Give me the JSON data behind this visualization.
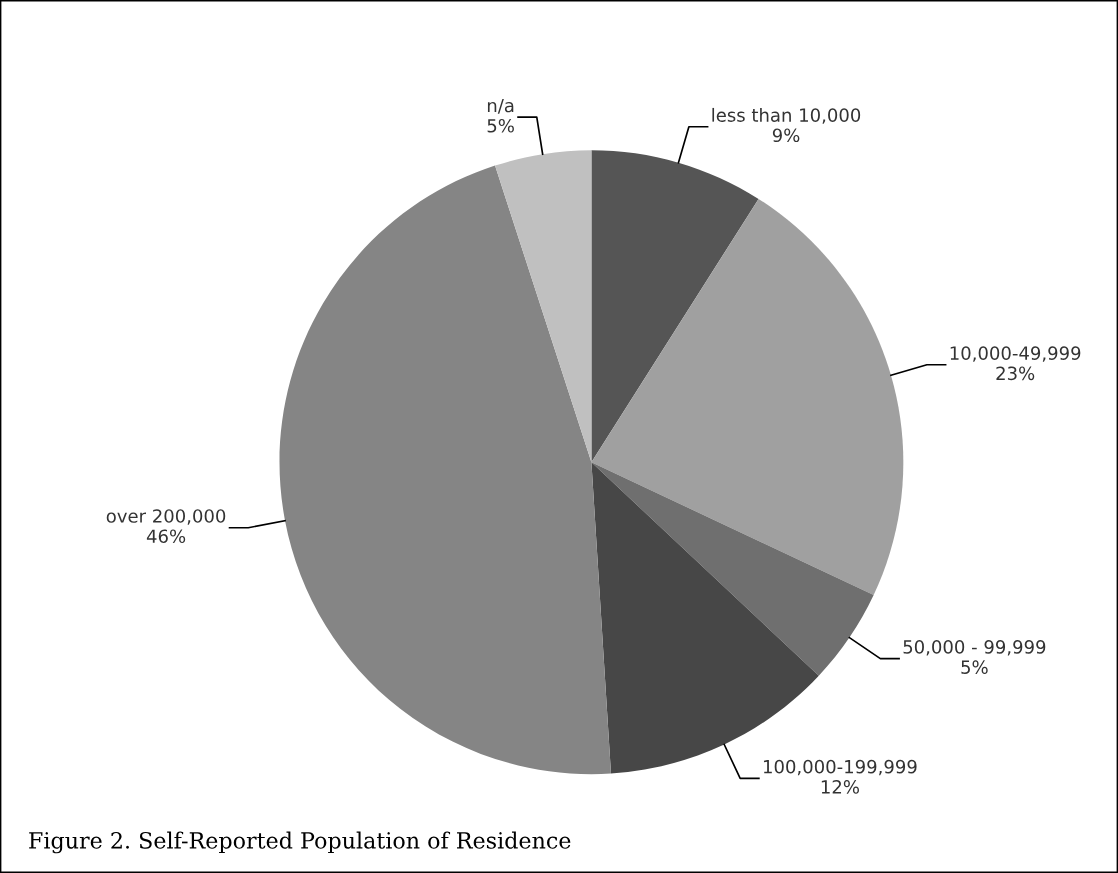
{
  "chart_data": {
    "type": "pie",
    "title": "Figure 2. Self-Reported Population of Residence",
    "categories": [
      "less than 10,000",
      "10,000-49,999",
      "50,000 - 99,999",
      "100,000-199,999",
      "over 200,000",
      "n/a"
    ],
    "values": [
      9,
      23,
      5,
      12,
      46,
      5
    ],
    "value_labels": [
      "9%",
      "23%",
      "5%",
      "12%",
      "46%",
      "5%"
    ],
    "colors": [
      "#555555",
      "#a0a0a0",
      "#6f6f6f",
      "#474747",
      "#858585",
      "#c0c0c0"
    ],
    "legend": false
  }
}
